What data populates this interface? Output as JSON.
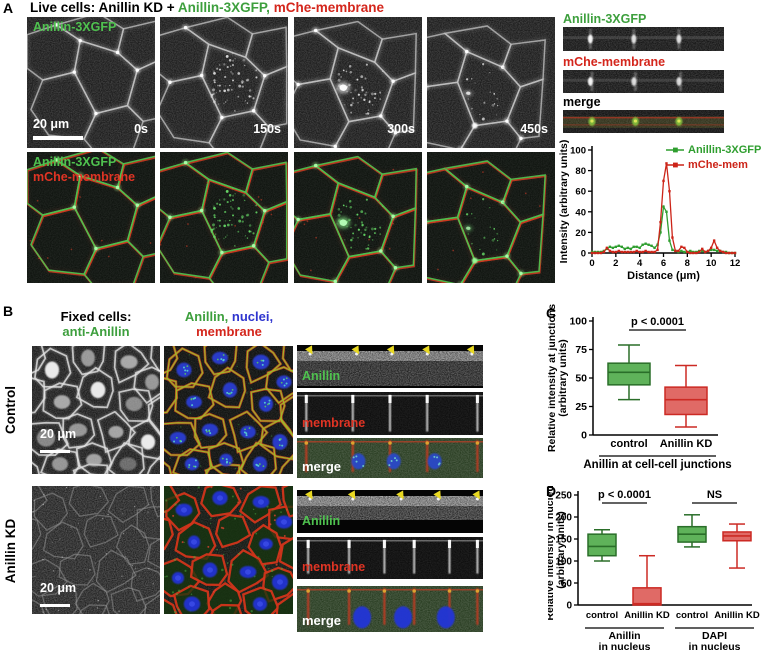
{
  "panelA": {
    "label": "A",
    "title": {
      "black": "Live cells: Anillin KD +",
      "green": "Anillin-3XGFP,",
      "red": "mChe-membrane"
    },
    "img_label_gfp": "Anillin-3XGFP",
    "img_label_mche": "mChe-membrane",
    "scalebar": "20 μm",
    "timepoints": [
      "0s",
      "150s",
      "300s",
      "450s"
    ],
    "kymo_labels": [
      {
        "text": "Anillin-3XGFP",
        "color": "#3d9f3d"
      },
      {
        "text": "mChe-membrane",
        "color": "#d4261c"
      },
      {
        "text": "merge",
        "color": "#000000"
      }
    ]
  },
  "panelB": {
    "label": "B",
    "col1": {
      "line1": "Fixed cells:",
      "line2": "anti-Anillin"
    },
    "col2": {
      "part_green": "Anillin,",
      "part_blue": "nuclei,",
      "line2": "membrane"
    },
    "rows": [
      {
        "label": "Control"
      },
      {
        "label": "Anillin KD"
      }
    ],
    "strip_labels": {
      "anillin": "Anillin",
      "membrane": "membrane",
      "merge": "merge"
    },
    "scalebar": "20 μm"
  },
  "panelC": {
    "label": "C"
  },
  "panelD": {
    "label": "D"
  },
  "chart_data": [
    {
      "type": "line",
      "xlabel": "Distance (μm)",
      "ylabel": "Intensity (arbitrary units)",
      "xlim": [
        0,
        12
      ],
      "ylim": [
        0,
        100
      ],
      "xticks": [
        0,
        2,
        4,
        6,
        8,
        10,
        12
      ],
      "yticks": [
        0,
        20,
        40,
        60,
        80,
        100
      ],
      "x_start": 0,
      "x_step": 0.25,
      "legend_position": "top-right",
      "series": [
        {
          "name": "Anillin-3XGFP",
          "color": "#2f9e2f",
          "values": [
            1,
            1,
            1,
            1,
            2,
            4,
            6,
            5,
            6,
            7,
            6,
            4,
            5,
            4,
            6,
            6,
            5,
            8,
            9,
            8,
            7,
            5,
            8,
            20,
            45,
            40,
            12,
            3,
            2,
            1,
            2,
            1,
            1,
            2,
            1,
            1,
            2,
            2,
            1,
            2,
            3,
            3,
            2,
            2,
            1,
            1,
            0,
            0,
            0
          ]
        },
        {
          "name": "mChe-mem",
          "color": "#cc2418",
          "values": [
            0,
            0,
            0,
            0,
            1,
            5,
            2,
            1,
            1,
            2,
            1,
            1,
            1,
            1,
            1,
            2,
            1,
            1,
            2,
            1,
            1,
            1,
            3,
            30,
            70,
            87,
            60,
            15,
            2,
            2,
            6,
            5,
            1,
            0,
            0,
            0,
            1,
            4,
            1,
            2,
            5,
            12,
            5,
            2,
            1,
            0,
            0,
            0,
            0
          ]
        }
      ]
    },
    {
      "type": "box",
      "ylabel_lines": [
        "Relative intensity at junctions",
        "(arbitrary units)"
      ],
      "ylim": [
        0,
        100
      ],
      "yticks": [
        0,
        25,
        50,
        75,
        100
      ],
      "boxes": [
        {
          "label": "control",
          "whislo": 31,
          "q1": 44,
          "med": 55,
          "q3": 63,
          "whishi": 79,
          "fill": "#5fb25a",
          "line": "#2a6e29"
        },
        {
          "label": "Anillin KD",
          "whislo": 7,
          "q1": 18,
          "med": 31,
          "q3": 42,
          "whishi": 61,
          "fill": "#e06a66",
          "line": "#cc2a24"
        }
      ],
      "sig": [
        {
          "from": 0,
          "to": 1,
          "label": "p < 0.0001"
        }
      ],
      "group_labels": [
        {
          "from": 0,
          "to": 1,
          "lines": [
            "Anillin at cell-cell junctions"
          ]
        }
      ]
    },
    {
      "type": "box",
      "ylabel_lines": [
        "Relative intensity in nucleus",
        "(arbitrary units)"
      ],
      "ylim": [
        0,
        250
      ],
      "yticks": [
        0,
        50,
        100,
        150,
        200,
        250
      ],
      "boxes": [
        {
          "label": "control",
          "whislo": 100,
          "q1": 112,
          "med": 133,
          "q3": 161,
          "whishi": 171,
          "fill": "#5fb25a",
          "line": "#2a6e29"
        },
        {
          "label": "Anillin KD",
          "whislo": 0,
          "q1": 0,
          "med": 3,
          "q3": 39,
          "whishi": 112,
          "fill": "#e06a66",
          "line": "#cc2a24"
        },
        {
          "label": "control",
          "whislo": 132,
          "q1": 143,
          "med": 161,
          "q3": 178,
          "whishi": 205,
          "fill": "#5fb25a",
          "line": "#2a6e29"
        },
        {
          "label": "Anillin KD",
          "whislo": 84,
          "q1": 146,
          "med": 157,
          "q3": 166,
          "whishi": 184,
          "fill": "#e06a66",
          "line": "#cc2a24"
        }
      ],
      "sig": [
        {
          "from": 0,
          "to": 1,
          "label": "p < 0.0001"
        },
        {
          "from": 2,
          "to": 3,
          "label": "NS"
        }
      ],
      "group_labels": [
        {
          "from": 0,
          "to": 1,
          "lines": [
            "Anillin",
            "in nucleus"
          ]
        },
        {
          "from": 2,
          "to": 3,
          "lines": [
            "DAPI",
            "in nucleus"
          ]
        }
      ]
    }
  ]
}
